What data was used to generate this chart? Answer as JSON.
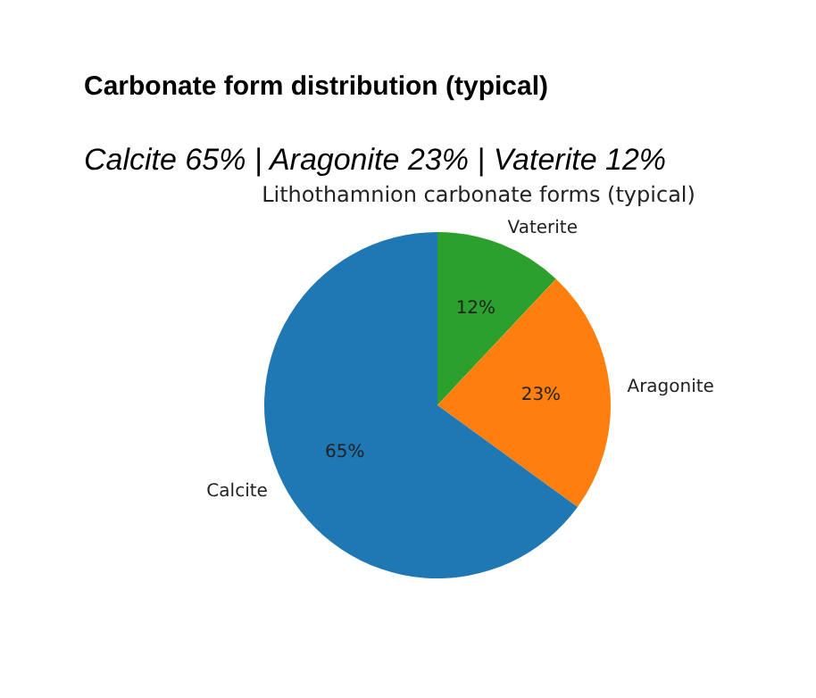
{
  "chart_data": {
    "type": "pie",
    "title": "Lithothamnion carbonate forms (typical)",
    "annotations": [
      "Carbonate form distribution (typical)",
      "Calcite 65% | Aragonite 23% | Vaterite 12%"
    ],
    "categories": [
      "Calcite",
      "Aragonite",
      "Vaterite"
    ],
    "values": [
      65,
      23,
      12
    ],
    "value_labels": [
      "65%",
      "23%",
      "12%"
    ],
    "colors": [
      "#1f77b4",
      "#ff7f0e",
      "#2ca02c"
    ],
    "legend": false
  }
}
